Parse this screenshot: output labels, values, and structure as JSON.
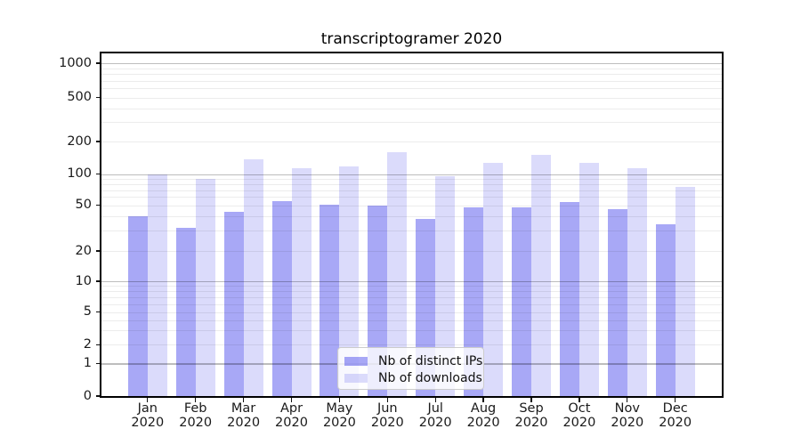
{
  "chart_data": {
    "type": "bar",
    "title": "transcriptogramer 2020",
    "categories": [
      "Jan 2020",
      "Feb 2020",
      "Mar 2020",
      "Apr 2020",
      "May 2020",
      "Jun 2020",
      "Jul 2020",
      "Aug 2020",
      "Sep 2020",
      "Oct 2020",
      "Nov 2020",
      "Dec 2020"
    ],
    "series": [
      {
        "name": "Nb of distinct IPs",
        "color": "rgba(0,0,230,0.34)",
        "values": [
          40,
          32,
          44,
          55,
          51,
          50,
          38,
          48,
          48,
          54,
          46,
          34
        ]
      },
      {
        "name": "Nb of downloads",
        "color": "rgba(0,0,230,0.14)",
        "values": [
          100,
          90,
          138,
          113,
          117,
          158,
          96,
          127,
          150,
          126,
          113,
          76
        ]
      }
    ],
    "yscale": "symlog",
    "yticks": [
      0,
      1,
      2,
      5,
      10,
      20,
      50,
      100,
      200,
      500,
      1000
    ],
    "ytick_labels": [
      "0",
      "1",
      "2",
      "5",
      "10",
      "20",
      "50",
      "100",
      "200",
      "500",
      "1000"
    ],
    "ylim": [
      0,
      1250
    ],
    "xlabel": "",
    "ylabel": "",
    "grid": true,
    "legend_position": "lower center",
    "colors": {
      "background": "#ffffff",
      "axis": "#000000",
      "major_grid": "#b7b7b7",
      "minor_grid": "#ebebeb",
      "tick_text": "#1a1a1a"
    }
  }
}
